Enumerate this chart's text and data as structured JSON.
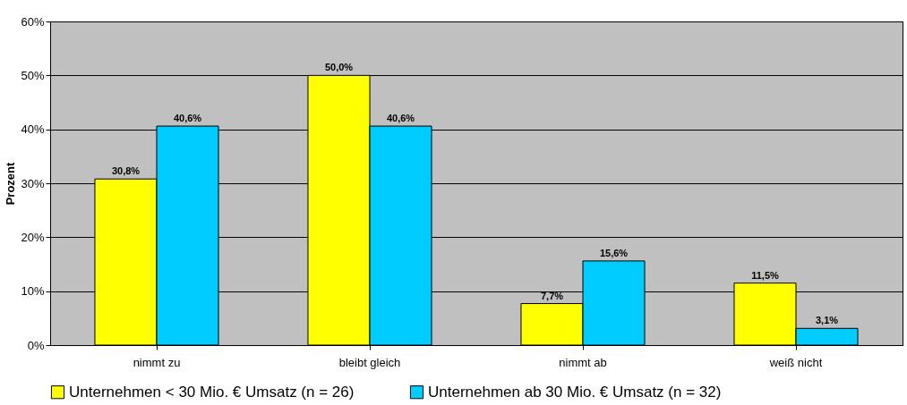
{
  "chart_data": {
    "type": "bar",
    "ylabel": "Prozent",
    "categories": [
      "nimmt zu",
      "bleibt gleich",
      "nimmt ab",
      "weiß nicht"
    ],
    "series": [
      {
        "name": "Unternehmen < 30 Mio. € Umsatz (n = 26)",
        "color": "#ffff00",
        "values": [
          30.8,
          50.0,
          7.7,
          11.5
        ],
        "value_labels": [
          "30,8%",
          "50,0%",
          "7,7%",
          "11,5%"
        ]
      },
      {
        "name": "Unternehmen ab 30 Mio. € Umsatz (n = 32)",
        "color": "#00ccff",
        "values": [
          40.6,
          40.6,
          15.6,
          3.1
        ],
        "value_labels": [
          "40,6%",
          "40,6%",
          "15,6%",
          "3,1%"
        ]
      }
    ],
    "ylim": [
      0,
      60
    ],
    "yticks": [
      {
        "value": 0,
        "label": "0%"
      },
      {
        "value": 10,
        "label": "10%"
      },
      {
        "value": 20,
        "label": "20%"
      },
      {
        "value": 30,
        "label": "30%"
      },
      {
        "value": 40,
        "label": "40%"
      },
      {
        "value": 50,
        "label": "50%"
      },
      {
        "value": 60,
        "label": "60%"
      }
    ],
    "grid": "y",
    "legend": "bottom"
  }
}
